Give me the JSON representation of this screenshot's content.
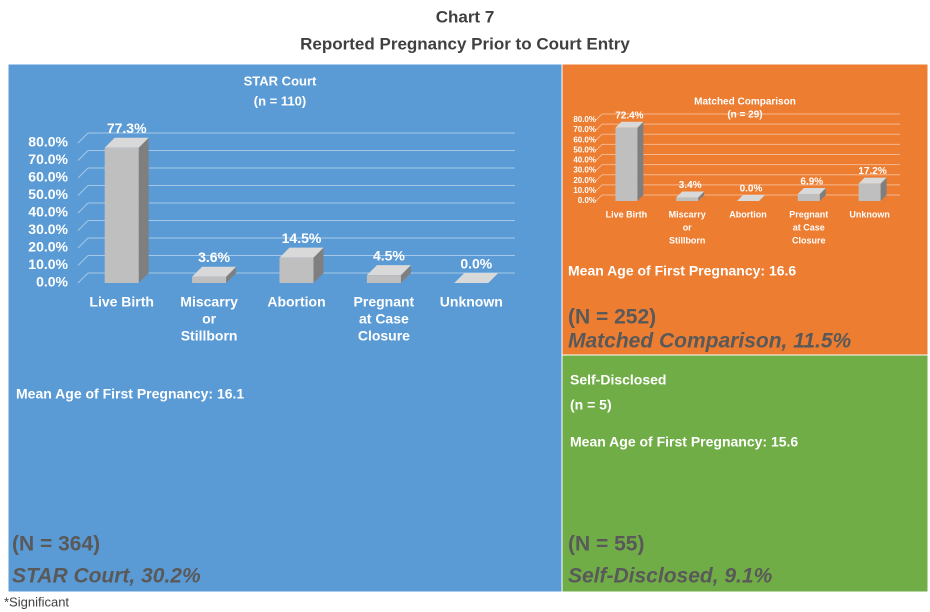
{
  "title": "Chart 7",
  "subtitle": "Reported Pregnancy Prior to Court Entry",
  "footnote": "*Significant",
  "panels": [
    {
      "mean_age": "Mean Age of First Pregnancy: 16.1",
      "N_label": "(N = 364)",
      "share_label": "STAR Court, 30.2%"
    },
    {
      "mean_age": "Mean Age of First Pregnancy: 16.6",
      "N_label": "(N = 252)",
      "share_label": "Matched Comparison, 11.5%"
    },
    {
      "name": "Self-Disclosed",
      "n_label": "(n = 5)",
      "mean_age": "Mean Age of First Pregnancy: 15.6",
      "N_label": "(N = 55)",
      "share_label": "Self-Disclosed, 9.1%"
    }
  ],
  "chart_data": [
    {
      "type": "bar",
      "title": "STAR Court",
      "subtitle": "(n = 110)",
      "categories": [
        [
          "Live Birth"
        ],
        [
          "Miscarry",
          "or",
          "Stillborn"
        ],
        [
          "Abortion"
        ],
        [
          "Pregnant",
          "at Case",
          "Closure"
        ],
        [
          "Unknown"
        ]
      ],
      "values": [
        77.3,
        3.6,
        14.5,
        4.5,
        0.0
      ],
      "value_labels": [
        "77.3%",
        "3.6%",
        "14.5%",
        "4.5%",
        "0.0%"
      ],
      "color": "#bfbfbf",
      "ylim": [
        0,
        80
      ],
      "yticks": [
        {
          "value": 0,
          "label": "0.0%"
        },
        {
          "value": 10,
          "label": "10.0%"
        },
        {
          "value": 20,
          "label": "20.0%"
        },
        {
          "value": 30,
          "label": "30.0%"
        },
        {
          "value": 40,
          "label": "40.0%"
        },
        {
          "value": 50,
          "label": "50.0%"
        },
        {
          "value": 60,
          "label": "60.0%"
        },
        {
          "value": 70,
          "label": "70.0%"
        },
        {
          "value": 80,
          "label": "80.0%"
        }
      ],
      "grid": true
    },
    {
      "type": "bar",
      "title": "Matched Comparison",
      "subtitle": "(n = 29)",
      "categories": [
        [
          "Live Birth"
        ],
        [
          "Miscarry",
          "or",
          "Stillborn"
        ],
        [
          "Abortion"
        ],
        [
          "Pregnant",
          "at Case",
          "Closure"
        ],
        [
          "Unknown"
        ]
      ],
      "values": [
        72.4,
        3.4,
        0.0,
        6.9,
        17.2
      ],
      "value_labels": [
        "72.4%",
        "3.4%",
        "0.0%",
        "6.9%",
        "17.2%"
      ],
      "color": "#bfbfbf",
      "ylim": [
        0,
        80
      ],
      "yticks": [
        {
          "value": 0,
          "label": "0.0%"
        },
        {
          "value": 10,
          "label": "10.0%"
        },
        {
          "value": 20,
          "label": "20.0%"
        },
        {
          "value": 30,
          "label": "30.0%"
        },
        {
          "value": 40,
          "label": "40.0%"
        },
        {
          "value": 50,
          "label": "50.0%"
        },
        {
          "value": 60,
          "label": "60.0%"
        },
        {
          "value": 70,
          "label": "70.0%"
        },
        {
          "value": 80,
          "label": "80.0%"
        }
      ],
      "grid": true
    }
  ]
}
